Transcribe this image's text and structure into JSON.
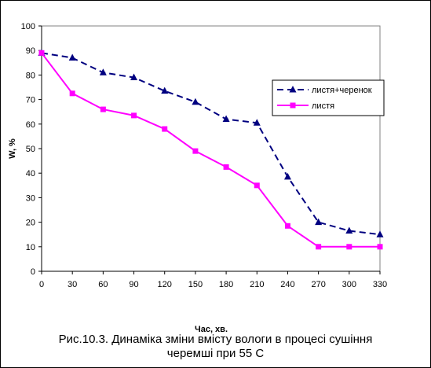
{
  "chart_data": {
    "type": "line",
    "xlabel": "Час, хв.",
    "ylabel": "W, %",
    "x": [
      0,
      30,
      60,
      90,
      120,
      150,
      180,
      210,
      240,
      270,
      300,
      330
    ],
    "xticks": [
      "0",
      "30",
      "60",
      "90",
      "120",
      "150",
      "180",
      "210",
      "240",
      "270",
      "300",
      "330"
    ],
    "yticks": [
      "0",
      "10",
      "20",
      "30",
      "40",
      "50",
      "60",
      "70",
      "80",
      "90",
      "100"
    ],
    "ylim": [
      0,
      100
    ],
    "grid": false,
    "legend_position": "right",
    "series": [
      {
        "name": "листя+черенок",
        "color": "#000080",
        "line": "dashed",
        "marker": "triangle",
        "values": [
          89,
          87,
          81,
          79,
          73.5,
          69,
          62,
          60.5,
          38.5,
          20,
          16.5,
          15
        ]
      },
      {
        "name": "листя",
        "color": "#ff00ff",
        "line": "solid",
        "marker": "square",
        "values": [
          89,
          72.5,
          66,
          63.5,
          58,
          49,
          42.5,
          35,
          18.5,
          10,
          10,
          10
        ]
      }
    ]
  },
  "caption": {
    "line1": "Рис.10.3. Динаміка зміни вмісту вологи в процесі сушіння",
    "line2": "черемші при 55 С"
  }
}
